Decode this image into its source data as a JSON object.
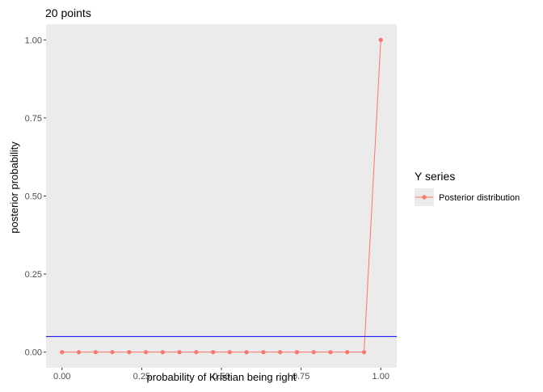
{
  "chart_data": {
    "type": "line",
    "title": "20 points",
    "xlabel": "probability of Kristian being right",
    "ylabel": "posterior probability",
    "xlim": [
      -0.05,
      1.05
    ],
    "ylim": [
      -0.05,
      1.05
    ],
    "x_ticks": [
      0,
      0.25,
      0.5,
      0.75,
      1
    ],
    "x_tick_labels": [
      "0.00",
      "0.25",
      "0.50",
      "0.75",
      "1.00"
    ],
    "y_ticks": [
      0,
      0.25,
      0.5,
      0.75,
      1
    ],
    "y_tick_labels": [
      "0.00",
      "0.25",
      "0.50",
      "0.75",
      "1.00"
    ],
    "grid": false,
    "legend": {
      "title": "Y series",
      "position": "right",
      "entries": [
        "Posterior distribution"
      ]
    },
    "series": [
      {
        "name": "Posterior distribution",
        "color": "#F8766D",
        "x": [
          0,
          0.0526,
          0.1053,
          0.1579,
          0.2105,
          0.2632,
          0.3158,
          0.3684,
          0.4211,
          0.4737,
          0.5263,
          0.5789,
          0.6316,
          0.6842,
          0.7368,
          0.7895,
          0.8421,
          0.8947,
          0.9474,
          1
        ],
        "y": [
          0,
          0,
          0,
          0,
          0,
          0,
          0,
          0,
          0,
          0,
          0,
          0,
          0,
          0,
          0,
          0,
          0,
          0,
          0,
          1
        ]
      }
    ],
    "hline": {
      "y": 0.05,
      "color": "#0000FF"
    },
    "panel_background": "#EBEBEB"
  }
}
